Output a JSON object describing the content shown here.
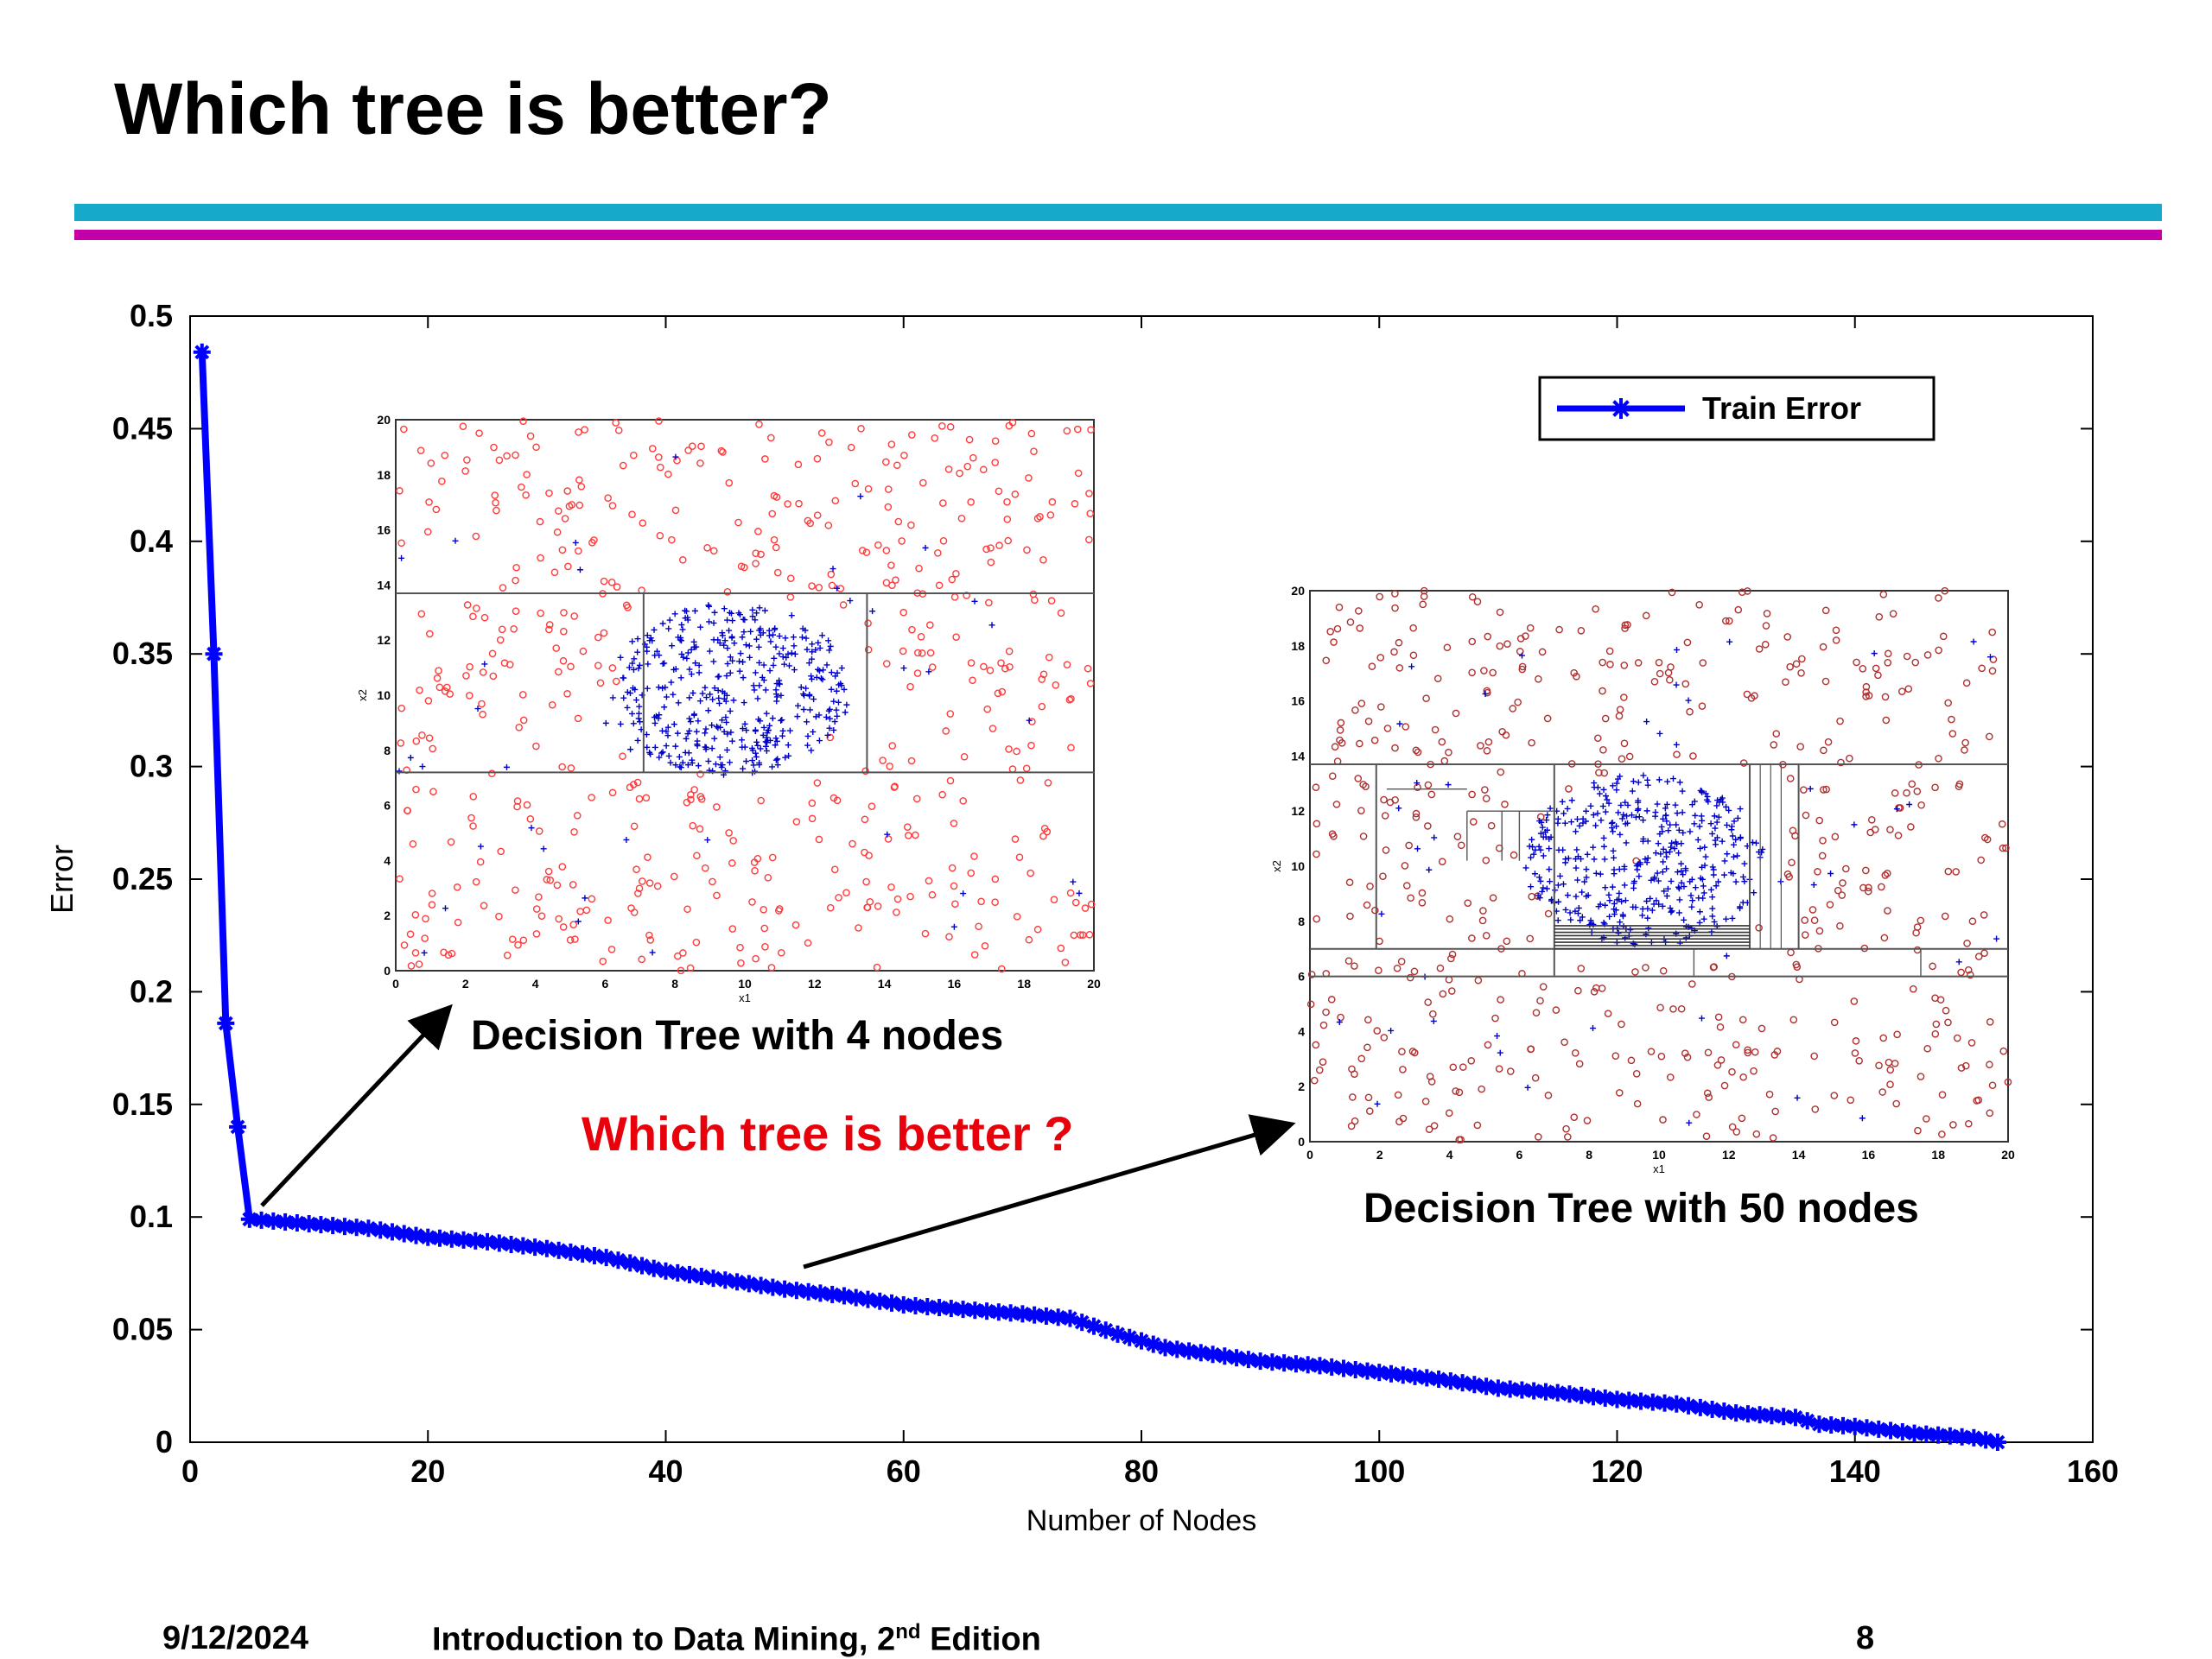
{
  "slide": {
    "title": "Which tree is better?",
    "footer_date": "9/12/2024",
    "footer_course": "Introduction to Data Mining, 2",
    "footer_course_sup": "nd",
    "footer_course_tail": " Edition",
    "footer_page": "8",
    "accent_cyan": "#17a9c9",
    "accent_magenta": "#c300a8"
  },
  "annotations": {
    "caption_4_nodes": "Decision Tree with 4 nodes",
    "caption_50_nodes": "Decision Tree with 50 nodes",
    "question": "Which tree is better ?"
  },
  "chart_data": [
    {
      "type": "line",
      "xlabel": "Number of Nodes",
      "ylabel": "Error",
      "xlim": [
        0,
        160
      ],
      "ylim": [
        0,
        0.5
      ],
      "xticks": [
        "0",
        "20",
        "40",
        "60",
        "80",
        "100",
        "120",
        "140",
        "160"
      ],
      "yticks": [
        "0",
        "0.05",
        "0.1",
        "0.15",
        "0.2",
        "0.25",
        "0.3",
        "0.35",
        "0.4",
        "0.45",
        "0.5"
      ],
      "legend": {
        "position": "top-right",
        "entries": [
          "Train Error"
        ]
      },
      "series": [
        {
          "name": "Train Error",
          "color": "#0000ff",
          "marker": "star",
          "points": [
            [
              1,
              0.484
            ],
            [
              2,
              0.35
            ],
            [
              3,
              0.186
            ],
            [
              4,
              0.14
            ],
            [
              5,
              0.099
            ],
            [
              10,
              0.097
            ],
            [
              15,
              0.095
            ],
            [
              20,
              0.091
            ],
            [
              25,
              0.089
            ],
            [
              30,
              0.086
            ],
            [
              35,
              0.082
            ],
            [
              40,
              0.076
            ],
            [
              45,
              0.072
            ],
            [
              50,
              0.068
            ],
            [
              55,
              0.065
            ],
            [
              60,
              0.061
            ],
            [
              65,
              0.059
            ],
            [
              70,
              0.057
            ],
            [
              74,
              0.055
            ],
            [
              78,
              0.048
            ],
            [
              82,
              0.042
            ],
            [
              86,
              0.039
            ],
            [
              90,
              0.036
            ],
            [
              95,
              0.034
            ],
            [
              100,
              0.031
            ],
            [
              105,
              0.028
            ],
            [
              110,
              0.024
            ],
            [
              115,
              0.022
            ],
            [
              120,
              0.019
            ],
            [
              125,
              0.017
            ],
            [
              130,
              0.013
            ],
            [
              135,
              0.011
            ],
            [
              137,
              0.008
            ],
            [
              140,
              0.007
            ],
            [
              145,
              0.004
            ],
            [
              150,
              0.002
            ],
            [
              152,
              0.0
            ]
          ]
        }
      ]
    },
    {
      "type": "scatter",
      "xlabel": "x1",
      "ylabel": "x2",
      "xlim": [
        0,
        20
      ],
      "ylim": [
        0,
        20
      ],
      "xticks": [
        "0",
        "2",
        "4",
        "6",
        "8",
        "10",
        "12",
        "14",
        "16",
        "18",
        "20"
      ],
      "yticks": [
        "0",
        "2",
        "4",
        "6",
        "8",
        "10",
        "12",
        "14",
        "16",
        "18",
        "20"
      ],
      "series": [
        {
          "marker": "circle",
          "color": "#ff3b3b",
          "distribution": "uniform over the square, outside the central disc",
          "count": 520
        },
        {
          "marker": "plus",
          "color": "#0000cc",
          "distribution": "disc centred near (10,10) plus sparse background",
          "count": 450
        }
      ],
      "boundaries": {
        "horizontal": [
          13.7,
          7.2
        ],
        "vertical_between_y": [
          [
            7.1,
            7.2,
            13.7
          ],
          [
            13.5,
            7.2,
            13.7
          ]
        ]
      }
    },
    {
      "type": "scatter",
      "xlabel": "x1",
      "ylabel": "x2",
      "xlim": [
        0,
        20
      ],
      "ylim": [
        0,
        20
      ],
      "xticks": [
        "0",
        "2",
        "4",
        "6",
        "8",
        "10",
        "12",
        "14",
        "16",
        "18",
        "20"
      ],
      "yticks": [
        "0",
        "2",
        "4",
        "6",
        "8",
        "10",
        "12",
        "14",
        "16",
        "18",
        "20"
      ],
      "series": [
        {
          "marker": "circle",
          "color": "#b03030",
          "distribution": "uniform over the square, outside the central disc",
          "count": 520
        },
        {
          "marker": "plus",
          "color": "#0000cc",
          "distribution": "disc centred near (10,10) plus sparse background",
          "count": 450
        }
      ],
      "boundaries": {
        "horizontal": [
          13.7,
          7.0,
          6.0
        ],
        "vertical_between_y": [
          [
            1.9,
            7.0,
            13.7
          ],
          [
            7.0,
            6.0,
            13.7
          ],
          [
            12.6,
            7.0,
            13.7
          ],
          [
            14.0,
            7.0,
            13.7
          ]
        ]
      }
    }
  ]
}
